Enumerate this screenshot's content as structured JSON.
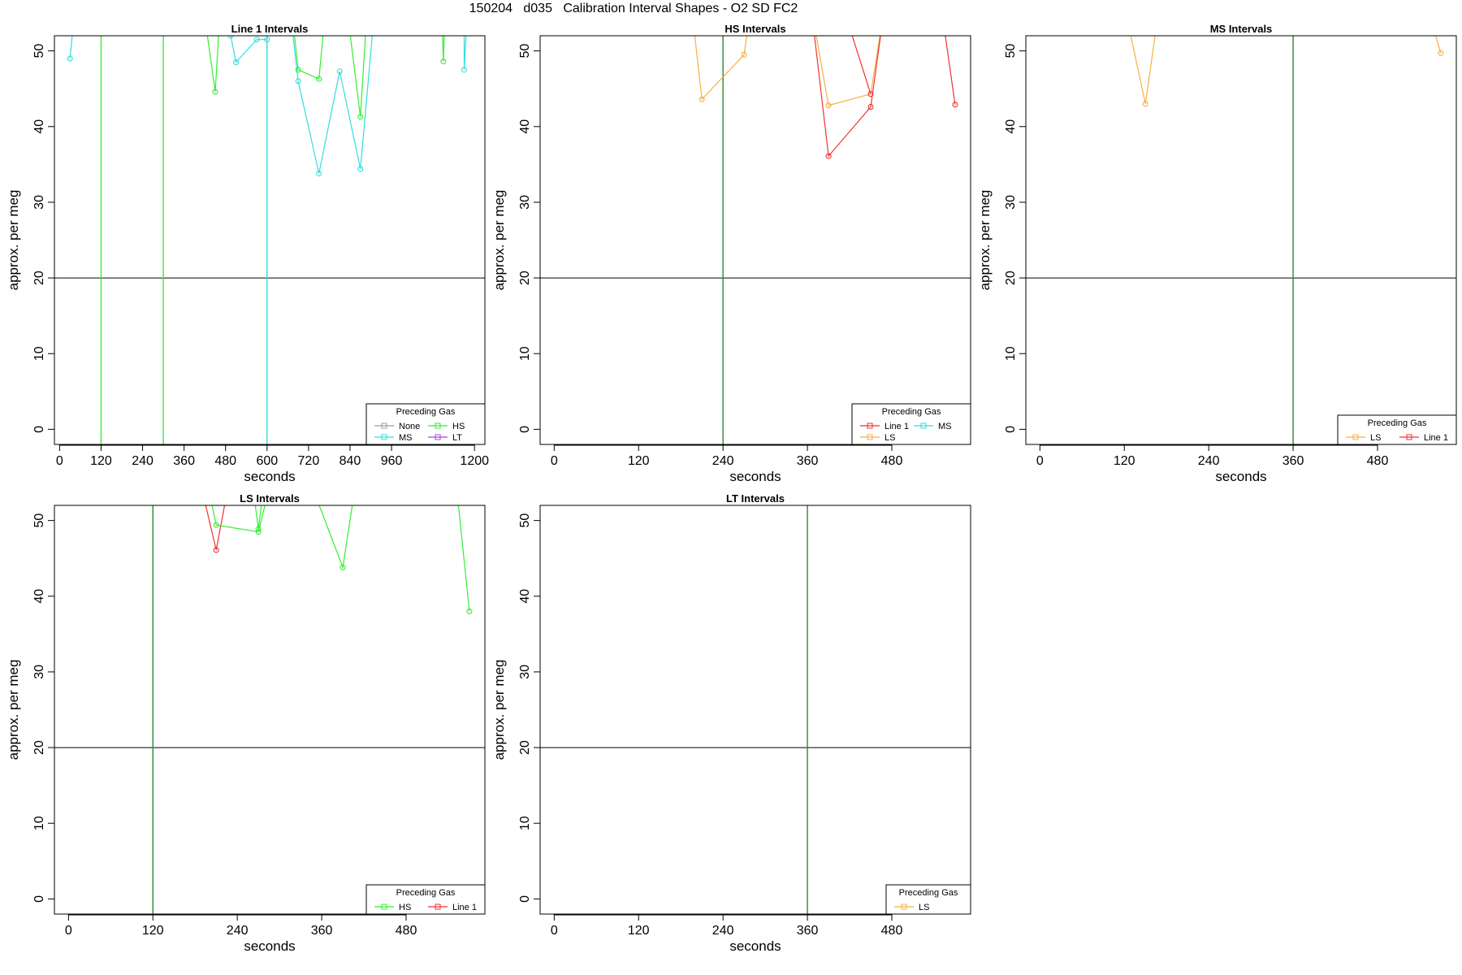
{
  "title": "150204   d035   Calibration Interval Shapes - O2 SD FC2",
  "colors": {
    "None": "#9e9e9e",
    "HS": "#33ee33",
    "MS": "#33dddd",
    "LT": "#aa44dd",
    "LS": "#f5b040",
    "Line 1": "#ee3333",
    "frame": "#000000",
    "hline": "#000000",
    "vline_default": "#2e8b2e"
  },
  "chart_data": [
    {
      "type": "line",
      "title": "Line 1 Intervals",
      "xlabel": "seconds",
      "ylabel": "approx. per meg",
      "xlim": [
        -15,
        1230
      ],
      "ylim": [
        -2,
        52
      ],
      "xticks": [
        0,
        120,
        240,
        360,
        480,
        600,
        720,
        840,
        960,
        1200
      ],
      "yticks": [
        0,
        10,
        20,
        30,
        40,
        50
      ],
      "hline": 20,
      "vlines": [
        {
          "x": 120,
          "color": "HS"
        },
        {
          "x": 300,
          "color": "HS"
        },
        {
          "x": 600,
          "color": "MS"
        }
      ],
      "legend": {
        "title": "Preceding Gas",
        "entries": [
          "None",
          "HS",
          "MS",
          "LT"
        ],
        "columns": 2,
        "position": "bottom-right"
      },
      "series": [
        {
          "name": "MS",
          "segments": [
            [
              [
                30,
                49
              ],
              [
                45,
                56
              ]
            ],
            [
              [
                495,
                52
              ],
              [
                510,
                48.5
              ],
              [
                570,
                51.5
              ],
              [
                600,
                51.5
              ]
            ],
            [
              [
                665,
                56
              ],
              [
                690,
                46
              ],
              [
                750,
                33.8
              ],
              [
                810,
                47.3
              ],
              [
                870,
                34.4
              ],
              [
                910,
                55
              ]
            ],
            [
              [
                1170,
                56
              ],
              [
                1170,
                47.5
              ],
              [
                1180,
                56
              ]
            ]
          ]
        },
        {
          "name": "HS",
          "segments": [
            [
              [
                415,
                56
              ],
              [
                450,
                44.6
              ],
              [
                465,
                56
              ]
            ],
            [
              [
                670,
                56
              ],
              [
                690,
                47.5
              ],
              [
                750,
                46.3
              ],
              [
                770,
                56
              ]
            ],
            [
              [
                830,
                56
              ],
              [
                870,
                41.3
              ],
              [
                890,
                56
              ]
            ],
            [
              [
                1105,
                56
              ],
              [
                1110,
                48.6
              ],
              [
                1115,
                56
              ]
            ]
          ]
        }
      ]
    },
    {
      "type": "line",
      "title": "HS Intervals",
      "xlabel": "seconds",
      "ylabel": "approx. per meg",
      "xlim": [
        -20,
        592
      ],
      "ylim": [
        -2,
        52
      ],
      "xticks": [
        0,
        120,
        240,
        360,
        480
      ],
      "yticks": [
        0,
        10,
        20,
        30,
        40,
        50
      ],
      "hline": 20,
      "vlines": [
        {
          "x": 240,
          "color": "vline_default"
        }
      ],
      "legend": {
        "title": "Preceding Gas",
        "entries": [
          "Line 1",
          "MS",
          "LS"
        ],
        "columns": 2,
        "position": "bottom-right"
      },
      "series": [
        {
          "name": "LS",
          "segments": [
            [
              [
                195,
                56
              ],
              [
                210,
                43.6
              ],
              [
                270,
                49.5
              ],
              [
                280,
                56
              ]
            ],
            [
              [
                365,
                56
              ],
              [
                390,
                42.8
              ],
              [
                450,
                44.3
              ],
              [
                470,
                56
              ]
            ]
          ]
        },
        {
          "name": "Line 1",
          "segments": [
            [
              [
                365,
                56
              ],
              [
                390,
                36.1
              ],
              [
                450,
                42.6
              ],
              [
                470,
                56
              ]
            ],
            [
              [
                410,
                56
              ],
              [
                450,
                44.3
              ]
            ],
            [
              [
                550,
                56
              ],
              [
                570,
                42.9
              ]
            ]
          ]
        }
      ]
    },
    {
      "type": "line",
      "title": "MS Intervals",
      "xlabel": "seconds",
      "ylabel": "approx. per meg",
      "xlim": [
        -20,
        592
      ],
      "ylim": [
        -2,
        52
      ],
      "xticks": [
        0,
        120,
        240,
        360,
        480
      ],
      "yticks": [
        0,
        10,
        20,
        30,
        40,
        50
      ],
      "hline": 20,
      "vlines": [
        {
          "x": 360,
          "color": "vline_default"
        }
      ],
      "legend": {
        "title": "Preceding Gas",
        "entries": [
          "LS",
          "Line 1"
        ],
        "columns": 2,
        "position": "bottom-right"
      },
      "series": [
        {
          "name": "LS",
          "segments": [
            [
              [
                120,
                56
              ],
              [
                150,
                43
              ],
              [
                170,
                56
              ]
            ],
            [
              [
                550,
                56
              ],
              [
                570,
                49.7
              ]
            ]
          ]
        }
      ]
    },
    {
      "type": "line",
      "title": "LS Intervals",
      "xlabel": "seconds",
      "ylabel": "approx. per meg",
      "xlim": [
        -20,
        592
      ],
      "ylim": [
        -2,
        52
      ],
      "xticks": [
        0,
        120,
        240,
        360,
        480
      ],
      "yticks": [
        0,
        10,
        20,
        30,
        40,
        50
      ],
      "hline": 20,
      "vlines": [
        {
          "x": 120,
          "color": "vline_default"
        }
      ],
      "legend": {
        "title": "Preceding Gas",
        "entries": [
          "HS",
          "Line 1"
        ],
        "columns": 2,
        "position": "bottom-right"
      },
      "series": [
        {
          "name": "Line 1",
          "segments": [
            [
              [
                185,
                56
              ],
              [
                210,
                46.1
              ],
              [
                230,
                56
              ]
            ]
          ]
        },
        {
          "name": "HS",
          "segments": [
            [
              [
                195,
                56
              ],
              [
                210,
                49.4
              ],
              [
                270,
                48.5
              ],
              [
                290,
                56
              ]
            ],
            [
              [
                260,
                56
              ],
              [
                270,
                48.9
              ],
              [
                280,
                56
              ]
            ],
            [
              [
                340,
                56
              ],
              [
                390,
                43.8
              ],
              [
                410,
                56
              ]
            ],
            [
              [
                550,
                56
              ],
              [
                570,
                38
              ]
            ]
          ]
        }
      ]
    },
    {
      "type": "line",
      "title": "LT Intervals",
      "xlabel": "seconds",
      "ylabel": "approx. per meg",
      "xlim": [
        -20,
        592
      ],
      "ylim": [
        -2,
        52
      ],
      "xticks": [
        0,
        120,
        240,
        360,
        480
      ],
      "yticks": [
        0,
        10,
        20,
        30,
        40,
        50
      ],
      "hline": 20,
      "vlines": [
        {
          "x": 360,
          "color": "vline_default"
        }
      ],
      "legend": {
        "title": "Preceding Gas",
        "entries": [
          "LS"
        ],
        "columns": 1,
        "position": "bottom-right"
      },
      "series": []
    }
  ]
}
